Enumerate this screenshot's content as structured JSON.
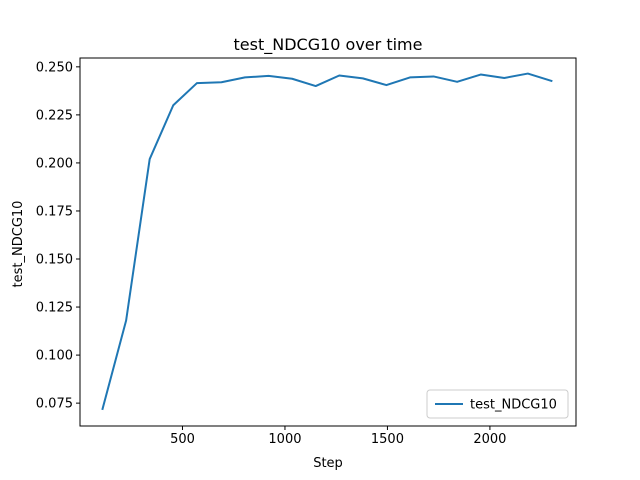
{
  "chart_data": {
    "type": "line",
    "title": "test_NDCG10 over time",
    "xlabel": "Step",
    "ylabel": "test_NDCG10",
    "xlim": [
      0,
      2420
    ],
    "ylim": [
      0.0631,
      0.2546
    ],
    "xticks": [
      500,
      1000,
      1500,
      2000
    ],
    "xtick_labels": [
      "500",
      "1000",
      "1500",
      "2000"
    ],
    "yticks": [
      0.075,
      0.1,
      0.125,
      0.15,
      0.175,
      0.2,
      0.225,
      0.25
    ],
    "ytick_labels": [
      "0.075",
      "0.100",
      "0.125",
      "0.150",
      "0.175",
      "0.200",
      "0.225",
      "0.250"
    ],
    "grid": false,
    "legend_position": "lower-right",
    "series": [
      {
        "name": "test_NDCG10",
        "color": "#1f77b4",
        "x": [
          110,
          225,
          340,
          455,
          570,
          690,
          805,
          920,
          1035,
          1150,
          1265,
          1380,
          1495,
          1610,
          1725,
          1840,
          1955,
          2070,
          2185,
          2300
        ],
        "y": [
          0.072,
          0.118,
          0.202,
          0.23,
          0.2415,
          0.242,
          0.2445,
          0.2453,
          0.2438,
          0.24,
          0.2455,
          0.244,
          0.2405,
          0.2445,
          0.245,
          0.2422,
          0.246,
          0.2442,
          0.2465,
          0.2427
        ]
      }
    ]
  }
}
